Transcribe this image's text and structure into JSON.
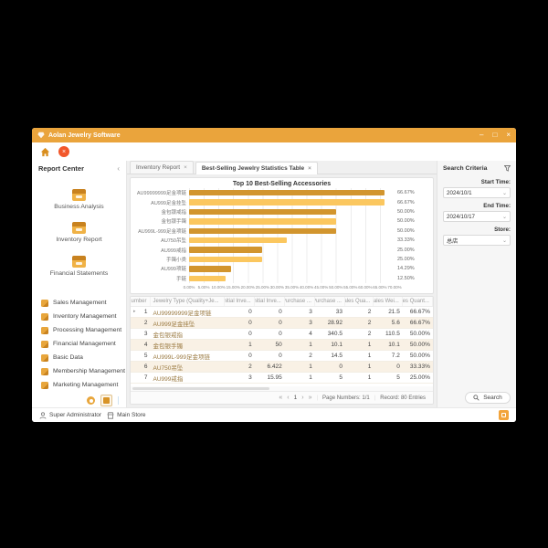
{
  "window": {
    "title": "Aolan Jewelry Software",
    "minimize_label": "–",
    "maximize_label": "□",
    "close_label": "×"
  },
  "toolbar": {
    "close_all_label": "×"
  },
  "sidebar": {
    "report_center": {
      "title": "Report Center",
      "collapse_icon": "‹",
      "items": [
        "Business Analysis",
        "Inventory Report",
        "Financial Statements"
      ]
    },
    "menu": [
      "Sales Management",
      "Inventory Management",
      "Processing Management",
      "Financial Management",
      "Basic Data",
      "Membership Management",
      "Marketing Management"
    ]
  },
  "tabs": [
    {
      "label": "Inventory Report",
      "close": "×",
      "active": false
    },
    {
      "label": "Best-Selling Jewelry Statistics Table",
      "close": "×",
      "active": true
    }
  ],
  "chart_data": {
    "type": "bar",
    "orientation": "horizontal",
    "title": "Top 10 Best-Selling Accessories",
    "categories": [
      "AU99999999足金项链",
      "AU999足金挂坠",
      "金包银戒指",
      "金包银手镯",
      "AU999L-999足金项链",
      "AU750吊坠",
      "AU999戒指",
      "手镯小类",
      "AU999项链",
      "手链"
    ],
    "values": [
      66.67,
      66.67,
      50,
      50,
      50,
      33.33,
      25,
      25,
      14.29,
      12.5
    ],
    "value_labels": [
      "66.67%",
      "66.67%",
      "50.00%",
      "50.00%",
      "50.00%",
      "33.33%",
      "25.00%",
      "25.00%",
      "14.29%",
      "12.50%"
    ],
    "xlim": [
      0,
      70
    ],
    "x_ticks": [
      "0.00%",
      "5.00%",
      "10.00%",
      "15.00%",
      "20.00%",
      "25.00%",
      "30.00%",
      "35.00%",
      "40.00%",
      "45.00%",
      "50.00%",
      "55.00%",
      "60.00%",
      "65.00%",
      "70.00%"
    ],
    "bar_colors": [
      "#d2952e",
      "#fbc75f"
    ],
    "grid": true,
    "legend": false
  },
  "table": {
    "columns": [
      "Number",
      "Jewelry Type (Quality+Je...",
      "Initial Inve...",
      "Initial Inve...",
      "Purchase ...",
      "Purchase ...",
      "Sales Qua...",
      "Sales Wei...",
      "Sales Quant..."
    ],
    "rows": [
      [
        "1",
        "AU99999999足金项链",
        "0",
        "0",
        "3",
        "33",
        "2",
        "21.5",
        "66.67%"
      ],
      [
        "2",
        "AU999足金挂坠",
        "0",
        "0",
        "3",
        "28.92",
        "2",
        "5.6",
        "66.67%"
      ],
      [
        "3",
        "金包银戒指",
        "0",
        "0",
        "4",
        "340.5",
        "2",
        "110.5",
        "50.00%"
      ],
      [
        "4",
        "金包银手镯",
        "1",
        "50",
        "1",
        "10.1",
        "1",
        "10.1",
        "50.00%"
      ],
      [
        "5",
        "AU999L-999足金项链",
        "0",
        "0",
        "2",
        "14.5",
        "1",
        "7.2",
        "50.00%"
      ],
      [
        "6",
        "AU750吊坠",
        "2",
        "6.422",
        "1",
        "0",
        "1",
        "0",
        "33.33%"
      ],
      [
        "7",
        "AU999戒指",
        "3",
        "15.95",
        "1",
        "5",
        "1",
        "5",
        "25.00%"
      ]
    ]
  },
  "pagination": {
    "first": "«",
    "prev": "‹",
    "page": "1",
    "next": "›",
    "last": "»",
    "page_numbers_label": "Page Numbers: 1/1",
    "record_label": "Record: 80 Entries"
  },
  "search_panel": {
    "title": "Search Criteria",
    "fields": [
      {
        "label": "Start Time:",
        "value": "2024/10/1"
      },
      {
        "label": "End Time:",
        "value": "2024/10/17"
      },
      {
        "label": "Store:",
        "value": "总店"
      }
    ],
    "search_label": "Search"
  },
  "statusbar": {
    "user": "Super Administrator",
    "store": "Main Store"
  },
  "colors": {
    "titlebar": "#eaa43c",
    "accent": "#e7a33c",
    "bar_dark": "#d2952e",
    "bar_light": "#fbc75f",
    "close_all_red": "#f2572b",
    "row_alt": "#f9f1e5"
  }
}
